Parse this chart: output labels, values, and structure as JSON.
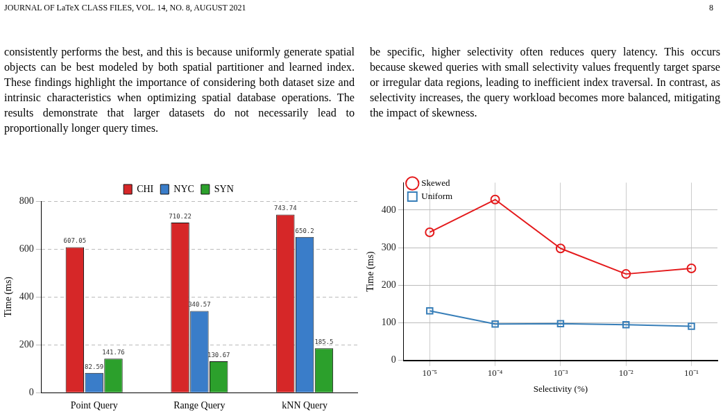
{
  "chart_data": [
    {
      "type": "other",
      "annotations": [
        "JOURNAL OF LaTeX CLASS FILES, VOL. 14, NO. 8, AUGUST 2021",
        "8",
        "consistently performs the best, and this is because uniformly generate spatial objects can be best modeled by both spatial partitioner and learned index. These findings highlight the importance of considering both dataset size and intrinsic characteristics when optimizing spatial database operations. The results demonstrate that larger datasets do not necessarily lead to proportionally longer query times.",
        "be specific, higher selectivity often reduces query latency. This occurs because skewed queries with small selectivity values frequently target sparse or irregular data regions, leading to inefficient index traversal. In contrast, as selectivity increases, the query workload becomes more balanced, mitigating the impact of skewness."
      ]
    },
    {
      "type": "bar",
      "ylabel": "Time (ms)",
      "categories": [
        "Point Query",
        "Range Query",
        "kNN Query"
      ],
      "series": [
        {
          "name": "CHI",
          "color": "#d62728",
          "values": [
            607.05,
            710.22,
            743.74
          ]
        },
        {
          "name": "NYC",
          "color": "#3a7dc9",
          "values": [
            82.59,
            340.57,
            650.2
          ]
        },
        {
          "name": "SYN",
          "color": "#2ca02c",
          "values": [
            141.76,
            130.67,
            185.5
          ]
        }
      ],
      "ylim": [
        0,
        800
      ],
      "yticks": [
        0,
        200,
        400,
        600,
        800
      ],
      "grid": "y",
      "line_style": "dashed",
      "legend": "top",
      "data_labels": true
    },
    {
      "type": "line",
      "xlabel": "Selectivity (%)",
      "ylabel": "Time (ms)",
      "log": "x",
      "x": [
        1e-05,
        0.0001,
        0.001,
        0.01,
        0.1
      ],
      "series": [
        {
          "name": "Skewed",
          "color": "#e41a1c",
          "marker": "circle",
          "values": [
            341,
            428,
            298,
            230,
            245
          ]
        },
        {
          "name": "Uniform",
          "color": "#377eb8",
          "marker": "square",
          "values": [
            132,
            97,
            98,
            95,
            91
          ]
        }
      ],
      "xlim": [
        4e-06,
        0.25
      ],
      "xticks": [
        {
          "value": 1e-05,
          "label": "10⁻⁵"
        },
        {
          "value": 0.0001,
          "label": "10⁻⁴"
        },
        {
          "value": 0.001,
          "label": "10⁻³"
        },
        {
          "value": 0.01,
          "label": "10⁻²"
        },
        {
          "value": 0.1,
          "label": "10⁻¹"
        }
      ],
      "ylim": [
        0,
        473
      ],
      "yticks": [
        0,
        100,
        200,
        300,
        400
      ],
      "grid": true,
      "legend": "top left"
    }
  ]
}
